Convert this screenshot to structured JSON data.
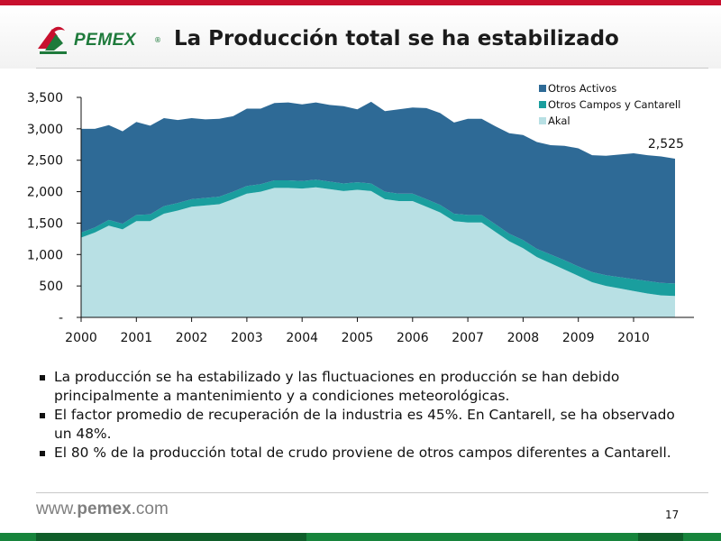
{
  "header": {
    "logo_text": "PEMEX",
    "logo_reg": "®",
    "title": "La Producción total se ha estabilizado"
  },
  "colors": {
    "otros_activos": "#2e6a96",
    "otros_campos": "#1a9e9e",
    "akal": "#b8e0e4",
    "brand_red": "#c8102e",
    "brand_green": "#17843c"
  },
  "chart_data": {
    "type": "area",
    "stacked": true,
    "x_ticks": [
      "2000",
      "2001",
      "2002",
      "2003",
      "2004",
      "2005",
      "2006",
      "2007",
      "2008",
      "2009",
      "2010"
    ],
    "xlim": [
      2000,
      2010.8
    ],
    "ylim": [
      0,
      3500
    ],
    "y_ticks": [
      "-",
      "500",
      "1,000",
      "1,500",
      "2,000",
      "2,500",
      "3,000",
      "3,500"
    ],
    "grid": false,
    "legend": "top-right",
    "x": [
      2000.0,
      2000.25,
      2000.5,
      2000.75,
      2001.0,
      2001.25,
      2001.5,
      2001.75,
      2002.0,
      2002.25,
      2002.5,
      2002.75,
      2003.0,
      2003.25,
      2003.5,
      2003.75,
      2004.0,
      2004.25,
      2004.5,
      2004.75,
      2005.0,
      2005.25,
      2005.5,
      2005.75,
      2006.0,
      2006.25,
      2006.5,
      2006.75,
      2007.0,
      2007.25,
      2007.5,
      2007.75,
      2008.0,
      2008.25,
      2008.5,
      2008.75,
      2009.0,
      2009.25,
      2009.5,
      2009.75,
      2010.0,
      2010.25,
      2010.5,
      2010.75
    ],
    "series": [
      {
        "name": "Akal",
        "values": [
          1270,
          1350,
          1460,
          1400,
          1530,
          1530,
          1650,
          1700,
          1760,
          1780,
          1800,
          1880,
          1970,
          2000,
          2060,
          2060,
          2050,
          2070,
          2040,
          2010,
          2030,
          2010,
          1880,
          1850,
          1850,
          1760,
          1670,
          1530,
          1510,
          1510,
          1360,
          1210,
          1100,
          960,
          860,
          760,
          660,
          560,
          500,
          460,
          420,
          380,
          350,
          340
        ]
      },
      {
        "name": "Otros Campos y Cantarell",
        "values": [
          80,
          80,
          90,
          90,
          100,
          110,
          120,
          120,
          120,
          120,
          120,
          120,
          120,
          120,
          120,
          120,
          120,
          120,
          120,
          120,
          120,
          120,
          120,
          120,
          120,
          120,
          120,
          120,
          120,
          120,
          120,
          120,
          130,
          130,
          140,
          150,
          150,
          160,
          170,
          180,
          190,
          200,
          200,
          200
        ]
      },
      {
        "name": "Otros Activos",
        "values": [
          1650,
          1570,
          1510,
          1470,
          1480,
          1410,
          1400,
          1320,
          1290,
          1250,
          1240,
          1200,
          1230,
          1200,
          1230,
          1240,
          1220,
          1230,
          1220,
          1230,
          1160,
          1300,
          1280,
          1340,
          1370,
          1450,
          1460,
          1450,
          1530,
          1530,
          1560,
          1600,
          1670,
          1700,
          1740,
          1820,
          1880,
          1860,
          1900,
          1950,
          2000,
          2000,
          2010,
          1985
        ]
      }
    ],
    "annotations": [
      {
        "text": "2,525",
        "x": 2010.75,
        "series": "total"
      }
    ]
  },
  "bullets": [
    "La producción se ha estabilizado y las fluctuaciones en producción se han debido principalmente a mantenimiento y a condiciones meteorológicas.",
    "El factor promedio de recuperación de la industria es 45%. En Cantarell, se ha observado un 48%.",
    "El 80 % de la producción total de crudo proviene de otros campos diferentes a Cantarell."
  ],
  "footer": {
    "url_prefix": "www.",
    "url_brand": "pemex",
    "url_suffix": ".com",
    "page_number": "17"
  }
}
